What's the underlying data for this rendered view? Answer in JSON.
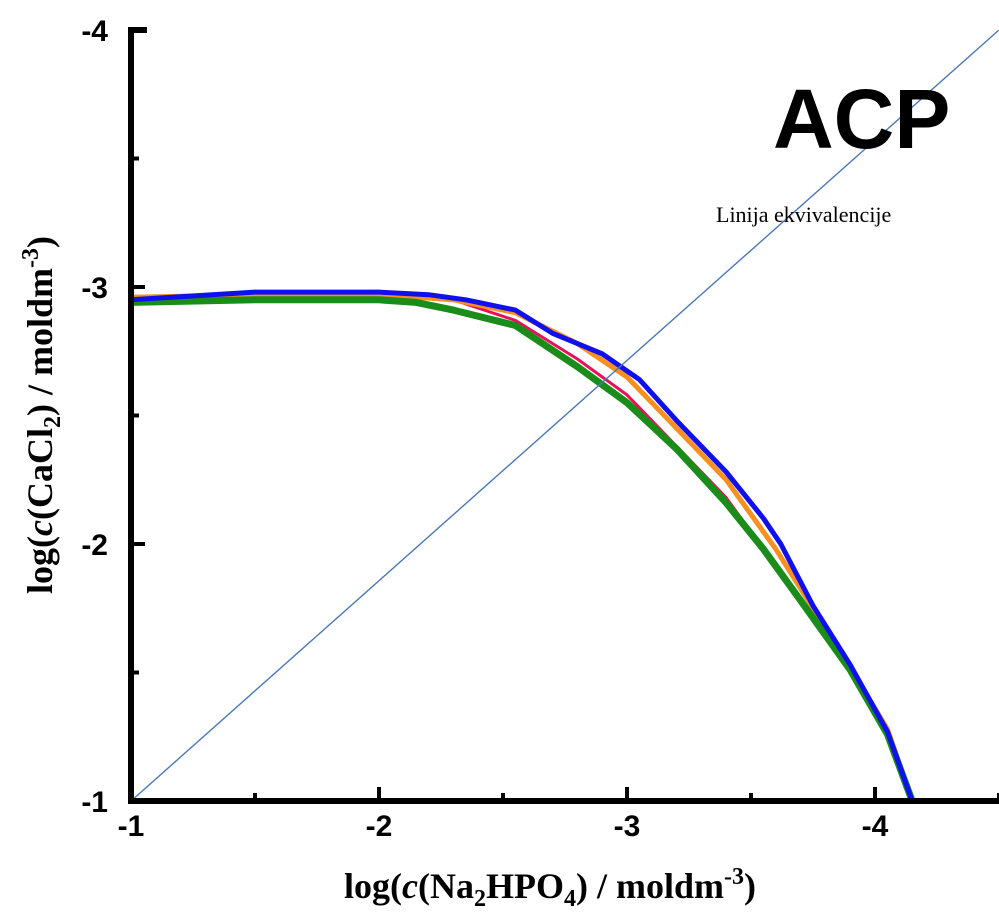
{
  "chart_data": {
    "type": "line",
    "title": "",
    "xlabel": {
      "pre": "log(",
      "italic": "c",
      "mid1": "(Na",
      "sub1": "2",
      "mid2": "HPO",
      "sub2": "4",
      "mid3": ") / moldm",
      "sup": "-3",
      "post": ")"
    },
    "ylabel": {
      "pre": "log(",
      "italic": "c",
      "mid1": "(CaCl",
      "sub1": "2",
      "mid2": ") / moldm",
      "sup": "-3",
      "post": ")"
    },
    "xlim": [
      -1,
      -4.5
    ],
    "ylim": [
      -1,
      -4
    ],
    "x_ticks": [
      -1,
      -2,
      -3,
      -4
    ],
    "x_tick_labels": [
      "-1",
      "-2",
      "-3",
      "-4"
    ],
    "y_ticks": [
      -1,
      -2,
      -3,
      -4
    ],
    "y_tick_labels": [
      "-1",
      "-2",
      "-3",
      "-4"
    ],
    "annotations": [
      {
        "text": "ACP",
        "x": -4.25,
        "y": -3.65
      },
      {
        "text": "Linija ekvivalencije",
        "x": -4.35,
        "y": -3.33
      }
    ],
    "series": [
      {
        "color": "#e8105a",
        "width": 3,
        "x": [
          -1,
          -1.5,
          -2,
          -2.3,
          -2.55,
          -2.8,
          -3.0,
          -3.2,
          -3.4,
          -3.55,
          -3.7,
          -3.9,
          -4.05,
          -4.15
        ],
        "y": [
          -2.96,
          -2.97,
          -2.97,
          -2.95,
          -2.87,
          -2.72,
          -2.58,
          -2.38,
          -2.18,
          -1.98,
          -1.78,
          -1.53,
          -1.27,
          -1.0
        ]
      },
      {
        "color": "#f7901e",
        "width": 5,
        "x": [
          -1,
          -1.5,
          -2,
          -2.3,
          -2.55,
          -2.8,
          -3.0,
          -3.2,
          -3.4,
          -3.6,
          -3.75,
          -3.9,
          -4.05,
          -4.15
        ],
        "y": [
          -2.96,
          -2.97,
          -2.97,
          -2.95,
          -2.9,
          -2.78,
          -2.65,
          -2.45,
          -2.25,
          -1.98,
          -1.75,
          -1.52,
          -1.28,
          -1.0
        ]
      },
      {
        "color": "#1a8c1a",
        "width": 7,
        "x": [
          -1,
          -1.5,
          -2,
          -2.15,
          -2.3,
          -2.55,
          -2.8,
          -3.0,
          -3.2,
          -3.4,
          -3.55,
          -3.7,
          -3.9,
          -4.05,
          -4.15
        ],
        "y": [
          -2.94,
          -2.95,
          -2.95,
          -2.94,
          -2.91,
          -2.85,
          -2.69,
          -2.55,
          -2.37,
          -2.16,
          -1.98,
          -1.78,
          -1.51,
          -1.26,
          -1.0
        ]
      },
      {
        "color": "#1010ee",
        "width": 5,
        "x": [
          -1,
          -1.5,
          -2,
          -2.2,
          -2.35,
          -2.55,
          -2.7,
          -2.9,
          -3.05,
          -3.2,
          -3.4,
          -3.55,
          -3.62,
          -3.75,
          -3.9,
          -4.05,
          -4.15
        ],
        "y": [
          -2.95,
          -2.98,
          -2.98,
          -2.97,
          -2.95,
          -2.91,
          -2.82,
          -2.74,
          -2.64,
          -2.48,
          -2.28,
          -2.1,
          -2.0,
          -1.76,
          -1.53,
          -1.27,
          -1.0
        ]
      },
      {
        "color": "#4a79b5",
        "width": 1.4,
        "x": [
          -1,
          -4.5
        ],
        "y": [
          -1,
          -4.0
        ]
      }
    ]
  }
}
